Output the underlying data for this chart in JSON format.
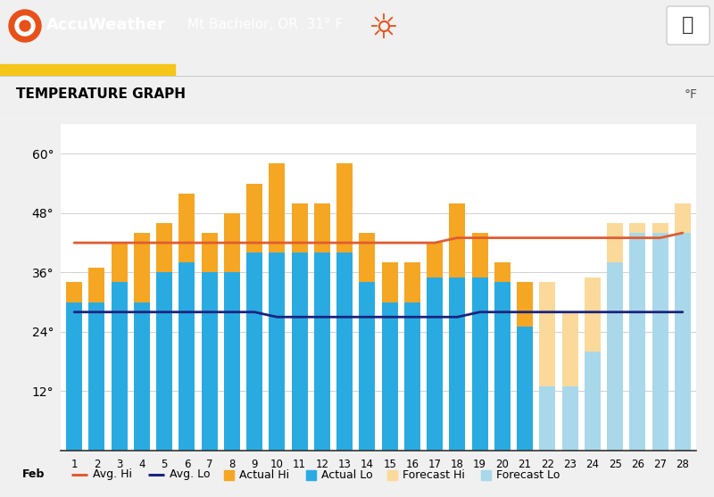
{
  "days": [
    1,
    2,
    3,
    4,
    5,
    6,
    7,
    8,
    9,
    10,
    11,
    12,
    13,
    14,
    15,
    16,
    17,
    18,
    19,
    20,
    21,
    22,
    23,
    24,
    25,
    26,
    27,
    28
  ],
  "actual_hi": [
    34,
    37,
    42,
    44,
    46,
    52,
    44,
    48,
    54,
    58,
    50,
    50,
    58,
    44,
    38,
    38,
    42,
    50,
    44,
    38,
    34,
    null,
    null,
    null,
    null,
    null,
    null,
    null
  ],
  "actual_lo": [
    30,
    30,
    34,
    30,
    36,
    38,
    36,
    36,
    40,
    40,
    40,
    40,
    40,
    34,
    30,
    30,
    35,
    35,
    35,
    34,
    25,
    null,
    null,
    null,
    null,
    null,
    null,
    null
  ],
  "forecast_hi": [
    null,
    null,
    null,
    null,
    null,
    null,
    null,
    null,
    null,
    null,
    null,
    null,
    null,
    null,
    null,
    null,
    null,
    null,
    null,
    null,
    null,
    34,
    28,
    35,
    46,
    46,
    46,
    50
  ],
  "forecast_lo": [
    null,
    null,
    null,
    null,
    null,
    null,
    null,
    null,
    null,
    null,
    null,
    null,
    null,
    null,
    null,
    null,
    null,
    null,
    null,
    null,
    null,
    13,
    13,
    20,
    38,
    44,
    44,
    44
  ],
  "avg_hi": [
    42,
    42,
    42,
    42,
    42,
    42,
    42,
    42,
    42,
    42,
    42,
    42,
    42,
    42,
    42,
    42,
    42,
    43,
    43,
    43,
    43,
    43,
    43,
    43,
    43,
    43,
    43,
    44
  ],
  "avg_lo": [
    28,
    28,
    28,
    28,
    28,
    28,
    28,
    28,
    28,
    27,
    27,
    27,
    27,
    27,
    27,
    27,
    27,
    27,
    28,
    28,
    28,
    28,
    28,
    28,
    28,
    28,
    28,
    28
  ],
  "actual_hi_color": "#F5A623",
  "actual_lo_color": "#29ABE2",
  "forecast_hi_color": "#FAD99A",
  "forecast_lo_color": "#A8D8EA",
  "avg_hi_color": "#E05C30",
  "avg_lo_color": "#1a237e",
  "chart_bg": "#ffffff",
  "page_bg": "#f0f0f0",
  "header_bg": "#1a1a1a",
  "title": "TEMPERATURE GRAPH",
  "ylabel": "°F",
  "yticks": [
    12,
    24,
    36,
    48,
    60
  ],
  "ylim": [
    0,
    66
  ],
  "header_text": "Mt Bachelor, OR  31° F",
  "legend_items": [
    {
      "type": "line",
      "color": "#E05C30",
      "label": "Avg. Hi"
    },
    {
      "type": "line",
      "color": "#1a237e",
      "label": "Avg. Lo"
    },
    {
      "type": "square",
      "color": "#F5A623",
      "label": "Actual Hi"
    },
    {
      "type": "square",
      "color": "#29ABE2",
      "label": "Actual Lo"
    },
    {
      "type": "square",
      "color": "#FAD99A",
      "label": "Forecast Hi"
    },
    {
      "type": "square",
      "color": "#A8D8EA",
      "label": "Forecast Lo"
    }
  ]
}
